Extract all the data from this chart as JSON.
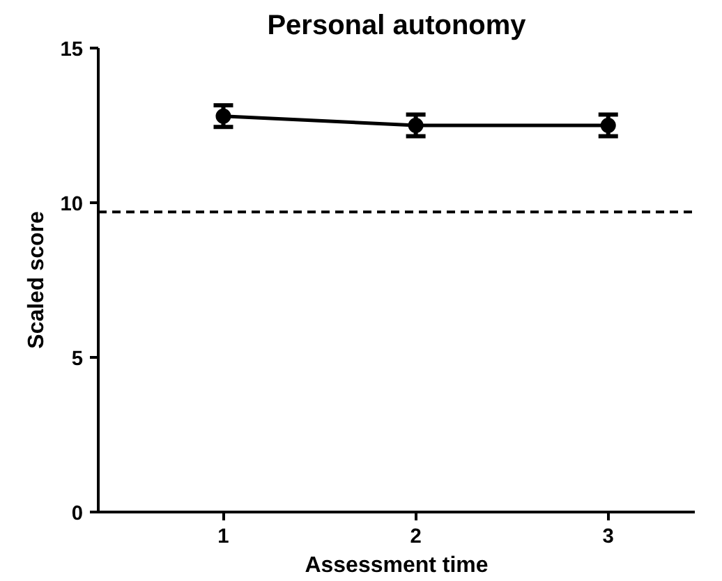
{
  "chart_data": {
    "type": "line",
    "title": "Personal autonomy",
    "xlabel": "Assessment time",
    "ylabel": "Scaled score",
    "x": [
      1,
      2,
      3
    ],
    "series": [
      {
        "color": "#000000",
        "values": [
          12.8,
          12.5,
          12.5
        ],
        "errors": [
          0.35,
          0.35,
          0.35
        ]
      }
    ],
    "xlim": [
      0.35,
      3.45
    ],
    "xticks": [
      1,
      2,
      3
    ],
    "ylim": [
      0,
      15
    ],
    "yticks": [
      0,
      5,
      10,
      15
    ],
    "ref_lines": [
      {
        "axis": "y",
        "value": 9.7,
        "line_style": "dashed",
        "color": "#000000"
      }
    ],
    "marker": "circle",
    "line_style": "solid",
    "grid": false
  }
}
